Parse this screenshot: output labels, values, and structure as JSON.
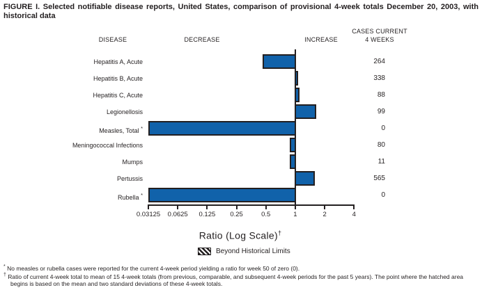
{
  "figure": {
    "title": "FIGURE I. Selected notifiable disease reports, United States, comparison of provisional 4-week totals December 20, 2003, with historical data"
  },
  "columns": {
    "disease": "DISEASE",
    "decrease": "DECREASE",
    "increase": "INCREASE",
    "cases_line1": "CASES CURRENT",
    "cases_line2": "4 WEEKS"
  },
  "chart_data": {
    "type": "bar",
    "orientation": "horizontal",
    "scale": "log2",
    "xlabel": "Ratio (Log Scale)",
    "xlabel_footnote_marker": "†",
    "baseline_ratio": 1,
    "xlim": [
      0.03125,
      4
    ],
    "axis_ticks": [
      0.03125,
      0.0625,
      0.125,
      0.25,
      0.5,
      1,
      2,
      4
    ],
    "axis_tick_labels": [
      "0.03125",
      "0.0625",
      "0.125",
      "0.25",
      "0.5",
      "1",
      "2",
      "4"
    ],
    "rows": [
      {
        "disease": "Hepatitis A, Acute",
        "marker": "",
        "ratio": 0.46,
        "cases_current_4_weeks": 264
      },
      {
        "disease": "Hepatitis B, Acute",
        "marker": "",
        "ratio": 1.05,
        "cases_current_4_weeks": 338
      },
      {
        "disease": "Hepatitis C, Acute",
        "marker": "",
        "ratio": 1.11,
        "cases_current_4_weeks": 88
      },
      {
        "disease": "Legionellosis",
        "marker": "",
        "ratio": 1.64,
        "cases_current_4_weeks": 99
      },
      {
        "disease": "Measles, Total",
        "marker": "*",
        "ratio": 0.03125,
        "cases_current_4_weeks": 0
      },
      {
        "disease": "Meningococcal Infections",
        "marker": "",
        "ratio": 0.87,
        "cases_current_4_weeks": 80
      },
      {
        "disease": "Mumps",
        "marker": "",
        "ratio": 0.87,
        "cases_current_4_weeks": 11
      },
      {
        "disease": "Pertussis",
        "marker": "",
        "ratio": 1.6,
        "cases_current_4_weeks": 565
      },
      {
        "disease": "Rubella",
        "marker": "*",
        "ratio": 0.03125,
        "cases_current_4_weeks": 0
      }
    ]
  },
  "legend": {
    "label": "Beyond Historical Limits",
    "swatch_meaning": "hatched-area"
  },
  "footnotes": [
    {
      "marker": "*",
      "text": "No measles or rubella cases were reported for the current 4-week period yielding a ratio for week 50 of zero (0)."
    },
    {
      "marker": "†",
      "text": "Ratio of current 4-week total to mean of 15 4-week totals (from previous, comparable, and subsequent 4-week periods for the past 5 years). The point where the hatched area begins is based on the mean and two standard deviations of these 4-week totals."
    }
  ],
  "colors": {
    "bar_fill": "#1162aa",
    "bar_border": "#231f20",
    "axis": "#231f20",
    "text": "#231f20"
  }
}
